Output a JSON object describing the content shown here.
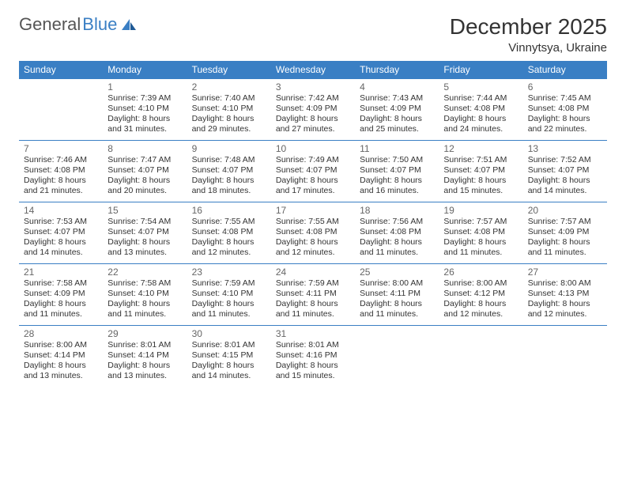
{
  "brand": {
    "part1": "General",
    "part2": "Blue"
  },
  "title": "December 2025",
  "location": "Vinnytsya, Ukraine",
  "colors": {
    "header_bg": "#3a7fc4",
    "header_text": "#ffffff",
    "border": "#3a7fc4",
    "text": "#333333",
    "daynum": "#666666"
  },
  "weekdays": [
    "Sunday",
    "Monday",
    "Tuesday",
    "Wednesday",
    "Thursday",
    "Friday",
    "Saturday"
  ],
  "weeks": [
    [
      null,
      {
        "n": "1",
        "sr": "Sunrise: 7:39 AM",
        "ss": "Sunset: 4:10 PM",
        "dl": "Daylight: 8 hours and 31 minutes."
      },
      {
        "n": "2",
        "sr": "Sunrise: 7:40 AM",
        "ss": "Sunset: 4:10 PM",
        "dl": "Daylight: 8 hours and 29 minutes."
      },
      {
        "n": "3",
        "sr": "Sunrise: 7:42 AM",
        "ss": "Sunset: 4:09 PM",
        "dl": "Daylight: 8 hours and 27 minutes."
      },
      {
        "n": "4",
        "sr": "Sunrise: 7:43 AM",
        "ss": "Sunset: 4:09 PM",
        "dl": "Daylight: 8 hours and 25 minutes."
      },
      {
        "n": "5",
        "sr": "Sunrise: 7:44 AM",
        "ss": "Sunset: 4:08 PM",
        "dl": "Daylight: 8 hours and 24 minutes."
      },
      {
        "n": "6",
        "sr": "Sunrise: 7:45 AM",
        "ss": "Sunset: 4:08 PM",
        "dl": "Daylight: 8 hours and 22 minutes."
      }
    ],
    [
      {
        "n": "7",
        "sr": "Sunrise: 7:46 AM",
        "ss": "Sunset: 4:08 PM",
        "dl": "Daylight: 8 hours and 21 minutes."
      },
      {
        "n": "8",
        "sr": "Sunrise: 7:47 AM",
        "ss": "Sunset: 4:07 PM",
        "dl": "Daylight: 8 hours and 20 minutes."
      },
      {
        "n": "9",
        "sr": "Sunrise: 7:48 AM",
        "ss": "Sunset: 4:07 PM",
        "dl": "Daylight: 8 hours and 18 minutes."
      },
      {
        "n": "10",
        "sr": "Sunrise: 7:49 AM",
        "ss": "Sunset: 4:07 PM",
        "dl": "Daylight: 8 hours and 17 minutes."
      },
      {
        "n": "11",
        "sr": "Sunrise: 7:50 AM",
        "ss": "Sunset: 4:07 PM",
        "dl": "Daylight: 8 hours and 16 minutes."
      },
      {
        "n": "12",
        "sr": "Sunrise: 7:51 AM",
        "ss": "Sunset: 4:07 PM",
        "dl": "Daylight: 8 hours and 15 minutes."
      },
      {
        "n": "13",
        "sr": "Sunrise: 7:52 AM",
        "ss": "Sunset: 4:07 PM",
        "dl": "Daylight: 8 hours and 14 minutes."
      }
    ],
    [
      {
        "n": "14",
        "sr": "Sunrise: 7:53 AM",
        "ss": "Sunset: 4:07 PM",
        "dl": "Daylight: 8 hours and 14 minutes."
      },
      {
        "n": "15",
        "sr": "Sunrise: 7:54 AM",
        "ss": "Sunset: 4:07 PM",
        "dl": "Daylight: 8 hours and 13 minutes."
      },
      {
        "n": "16",
        "sr": "Sunrise: 7:55 AM",
        "ss": "Sunset: 4:08 PM",
        "dl": "Daylight: 8 hours and 12 minutes."
      },
      {
        "n": "17",
        "sr": "Sunrise: 7:55 AM",
        "ss": "Sunset: 4:08 PM",
        "dl": "Daylight: 8 hours and 12 minutes."
      },
      {
        "n": "18",
        "sr": "Sunrise: 7:56 AM",
        "ss": "Sunset: 4:08 PM",
        "dl": "Daylight: 8 hours and 11 minutes."
      },
      {
        "n": "19",
        "sr": "Sunrise: 7:57 AM",
        "ss": "Sunset: 4:08 PM",
        "dl": "Daylight: 8 hours and 11 minutes."
      },
      {
        "n": "20",
        "sr": "Sunrise: 7:57 AM",
        "ss": "Sunset: 4:09 PM",
        "dl": "Daylight: 8 hours and 11 minutes."
      }
    ],
    [
      {
        "n": "21",
        "sr": "Sunrise: 7:58 AM",
        "ss": "Sunset: 4:09 PM",
        "dl": "Daylight: 8 hours and 11 minutes."
      },
      {
        "n": "22",
        "sr": "Sunrise: 7:58 AM",
        "ss": "Sunset: 4:10 PM",
        "dl": "Daylight: 8 hours and 11 minutes."
      },
      {
        "n": "23",
        "sr": "Sunrise: 7:59 AM",
        "ss": "Sunset: 4:10 PM",
        "dl": "Daylight: 8 hours and 11 minutes."
      },
      {
        "n": "24",
        "sr": "Sunrise: 7:59 AM",
        "ss": "Sunset: 4:11 PM",
        "dl": "Daylight: 8 hours and 11 minutes."
      },
      {
        "n": "25",
        "sr": "Sunrise: 8:00 AM",
        "ss": "Sunset: 4:11 PM",
        "dl": "Daylight: 8 hours and 11 minutes."
      },
      {
        "n": "26",
        "sr": "Sunrise: 8:00 AM",
        "ss": "Sunset: 4:12 PM",
        "dl": "Daylight: 8 hours and 12 minutes."
      },
      {
        "n": "27",
        "sr": "Sunrise: 8:00 AM",
        "ss": "Sunset: 4:13 PM",
        "dl": "Daylight: 8 hours and 12 minutes."
      }
    ],
    [
      {
        "n": "28",
        "sr": "Sunrise: 8:00 AM",
        "ss": "Sunset: 4:14 PM",
        "dl": "Daylight: 8 hours and 13 minutes."
      },
      {
        "n": "29",
        "sr": "Sunrise: 8:01 AM",
        "ss": "Sunset: 4:14 PM",
        "dl": "Daylight: 8 hours and 13 minutes."
      },
      {
        "n": "30",
        "sr": "Sunrise: 8:01 AM",
        "ss": "Sunset: 4:15 PM",
        "dl": "Daylight: 8 hours and 14 minutes."
      },
      {
        "n": "31",
        "sr": "Sunrise: 8:01 AM",
        "ss": "Sunset: 4:16 PM",
        "dl": "Daylight: 8 hours and 15 minutes."
      },
      null,
      null,
      null
    ]
  ]
}
